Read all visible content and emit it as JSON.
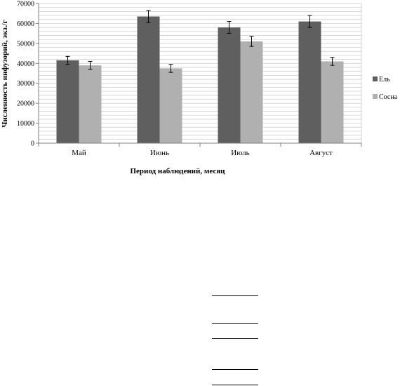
{
  "chart_data": {
    "type": "bar",
    "categories": [
      "Май",
      "Июнь",
      "Июль",
      "Август"
    ],
    "series": [
      {
        "name": "Ель",
        "values": [
          41500,
          63500,
          58000,
          61000
        ],
        "errors": [
          2000,
          3000,
          3000,
          3000
        ],
        "color": "#5f5f5f"
      },
      {
        "name": "Сосна",
        "values": [
          39000,
          37500,
          51000,
          41000
        ],
        "errors": [
          2000,
          2000,
          2500,
          2000
        ],
        "color": "#b0b0b0"
      }
    ],
    "title": "",
    "xlabel": "Период наблюдений, месяц",
    "ylabel": "Численность инфузорий, экз./г",
    "ylim": [
      0,
      70000
    ],
    "yticks": [
      0,
      10000,
      20000,
      30000,
      40000,
      50000,
      60000,
      70000
    ],
    "grid": true,
    "legend": "right"
  },
  "colors": {
    "grid": "#c8c8c8",
    "axis": "#7f7f7f"
  }
}
